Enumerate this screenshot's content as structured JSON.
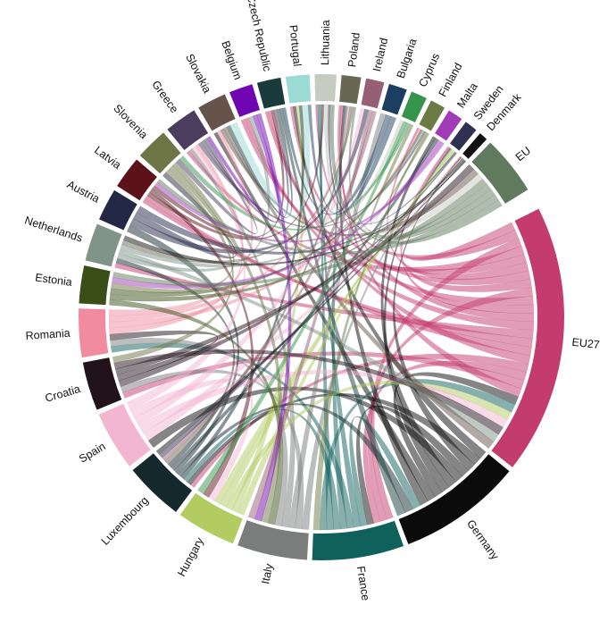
{
  "sectors": [
    {
      "label": "EU27",
      "color": "#c43c6e",
      "value": 25
    },
    {
      "label": "Germany",
      "color": "#0b0b0b",
      "value": 11.5
    },
    {
      "label": "France",
      "color": "#10605c",
      "value": 8.5
    },
    {
      "label": "Italy",
      "color": "#7a7d7c",
      "value": 6.5
    },
    {
      "label": "Hungary",
      "color": "#b2cc62",
      "value": 5.5
    },
    {
      "label": "Luxembourg",
      "color": "#14292d",
      "value": 5.5
    },
    {
      "label": "Spain",
      "color": "#f2b6d1",
      "value": 5.5
    },
    {
      "label": "Croatia",
      "color": "#22121a",
      "value": 4.5
    },
    {
      "label": "Romania",
      "color": "#f08ba0",
      "value": 4.5
    },
    {
      "label": "Estonia",
      "color": "#394f17",
      "value": 3.5
    },
    {
      "label": "Netherlands",
      "color": "#809489",
      "value": 3.5
    },
    {
      "label": "Austria",
      "color": "#232847",
      "value": 3.0
    },
    {
      "label": "Latvia",
      "color": "#5b1219",
      "value": 3.0
    },
    {
      "label": "Slovenia",
      "color": "#6e7647",
      "value": 3.0
    },
    {
      "label": "Greece",
      "color": "#4b3d5e",
      "value": 3.0
    },
    {
      "label": "Slovakia",
      "color": "#66544a",
      "value": 2.7
    },
    {
      "label": "Belgium",
      "color": "#6f06b2",
      "value": 2.2
    },
    {
      "label": "Czech Republic",
      "color": "#1a3b3b",
      "value": 2.2
    },
    {
      "label": "Portugal",
      "color": "#9cdad4",
      "value": 2.2
    },
    {
      "label": "Lithuania",
      "color": "#c6ccc0",
      "value": 2.0
    },
    {
      "label": "Poland",
      "color": "#676753",
      "value": 1.8
    },
    {
      "label": "Ireland",
      "color": "#965f74",
      "value": 1.7
    },
    {
      "label": "Bulgaria",
      "color": "#1b3e61",
      "value": 1.7
    },
    {
      "label": "Cyprus",
      "color": "#36944c",
      "value": 1.5
    },
    {
      "label": "Finland",
      "color": "#6c7b44",
      "value": 1.4
    },
    {
      "label": "Malta",
      "color": "#a23bb7",
      "value": 1.4
    },
    {
      "label": "Sweden",
      "color": "#303050",
      "value": 1.2
    },
    {
      "label": "Denmark",
      "color": "#111111",
      "value": 0.8
    },
    {
      "label": "EU",
      "color": "#5f7a5d",
      "value": 5.5
    }
  ]
}
